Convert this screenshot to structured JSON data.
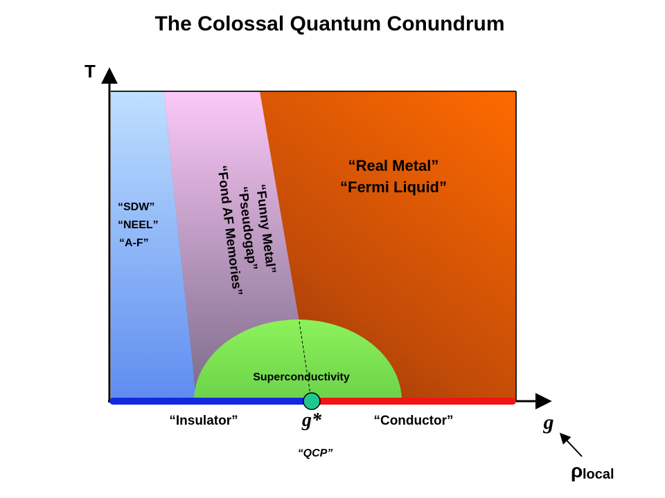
{
  "title": "The Colossal Quantum Conundrum",
  "axes": {
    "y_label": "T",
    "x_label": "g"
  },
  "regions": {
    "left": {
      "lines": [
        "“SDW”",
        "“NEEL”",
        "“A-F”"
      ]
    },
    "middle": {
      "lines": [
        "“Funny Metal”",
        "“Pseudogap”",
        "“Fond AF Memories”"
      ]
    },
    "right": {
      "lines": [
        "“Real Metal”",
        "“Fermi Liquid”"
      ]
    },
    "dome": {
      "label": "Superconductivity"
    }
  },
  "bottom": {
    "insulator": "“Insulator”",
    "critical": "g*",
    "conductor": "“Conductor”",
    "qcp": "“QCP”"
  },
  "rho": {
    "symbol": "ρ",
    "subscript": "local"
  }
}
